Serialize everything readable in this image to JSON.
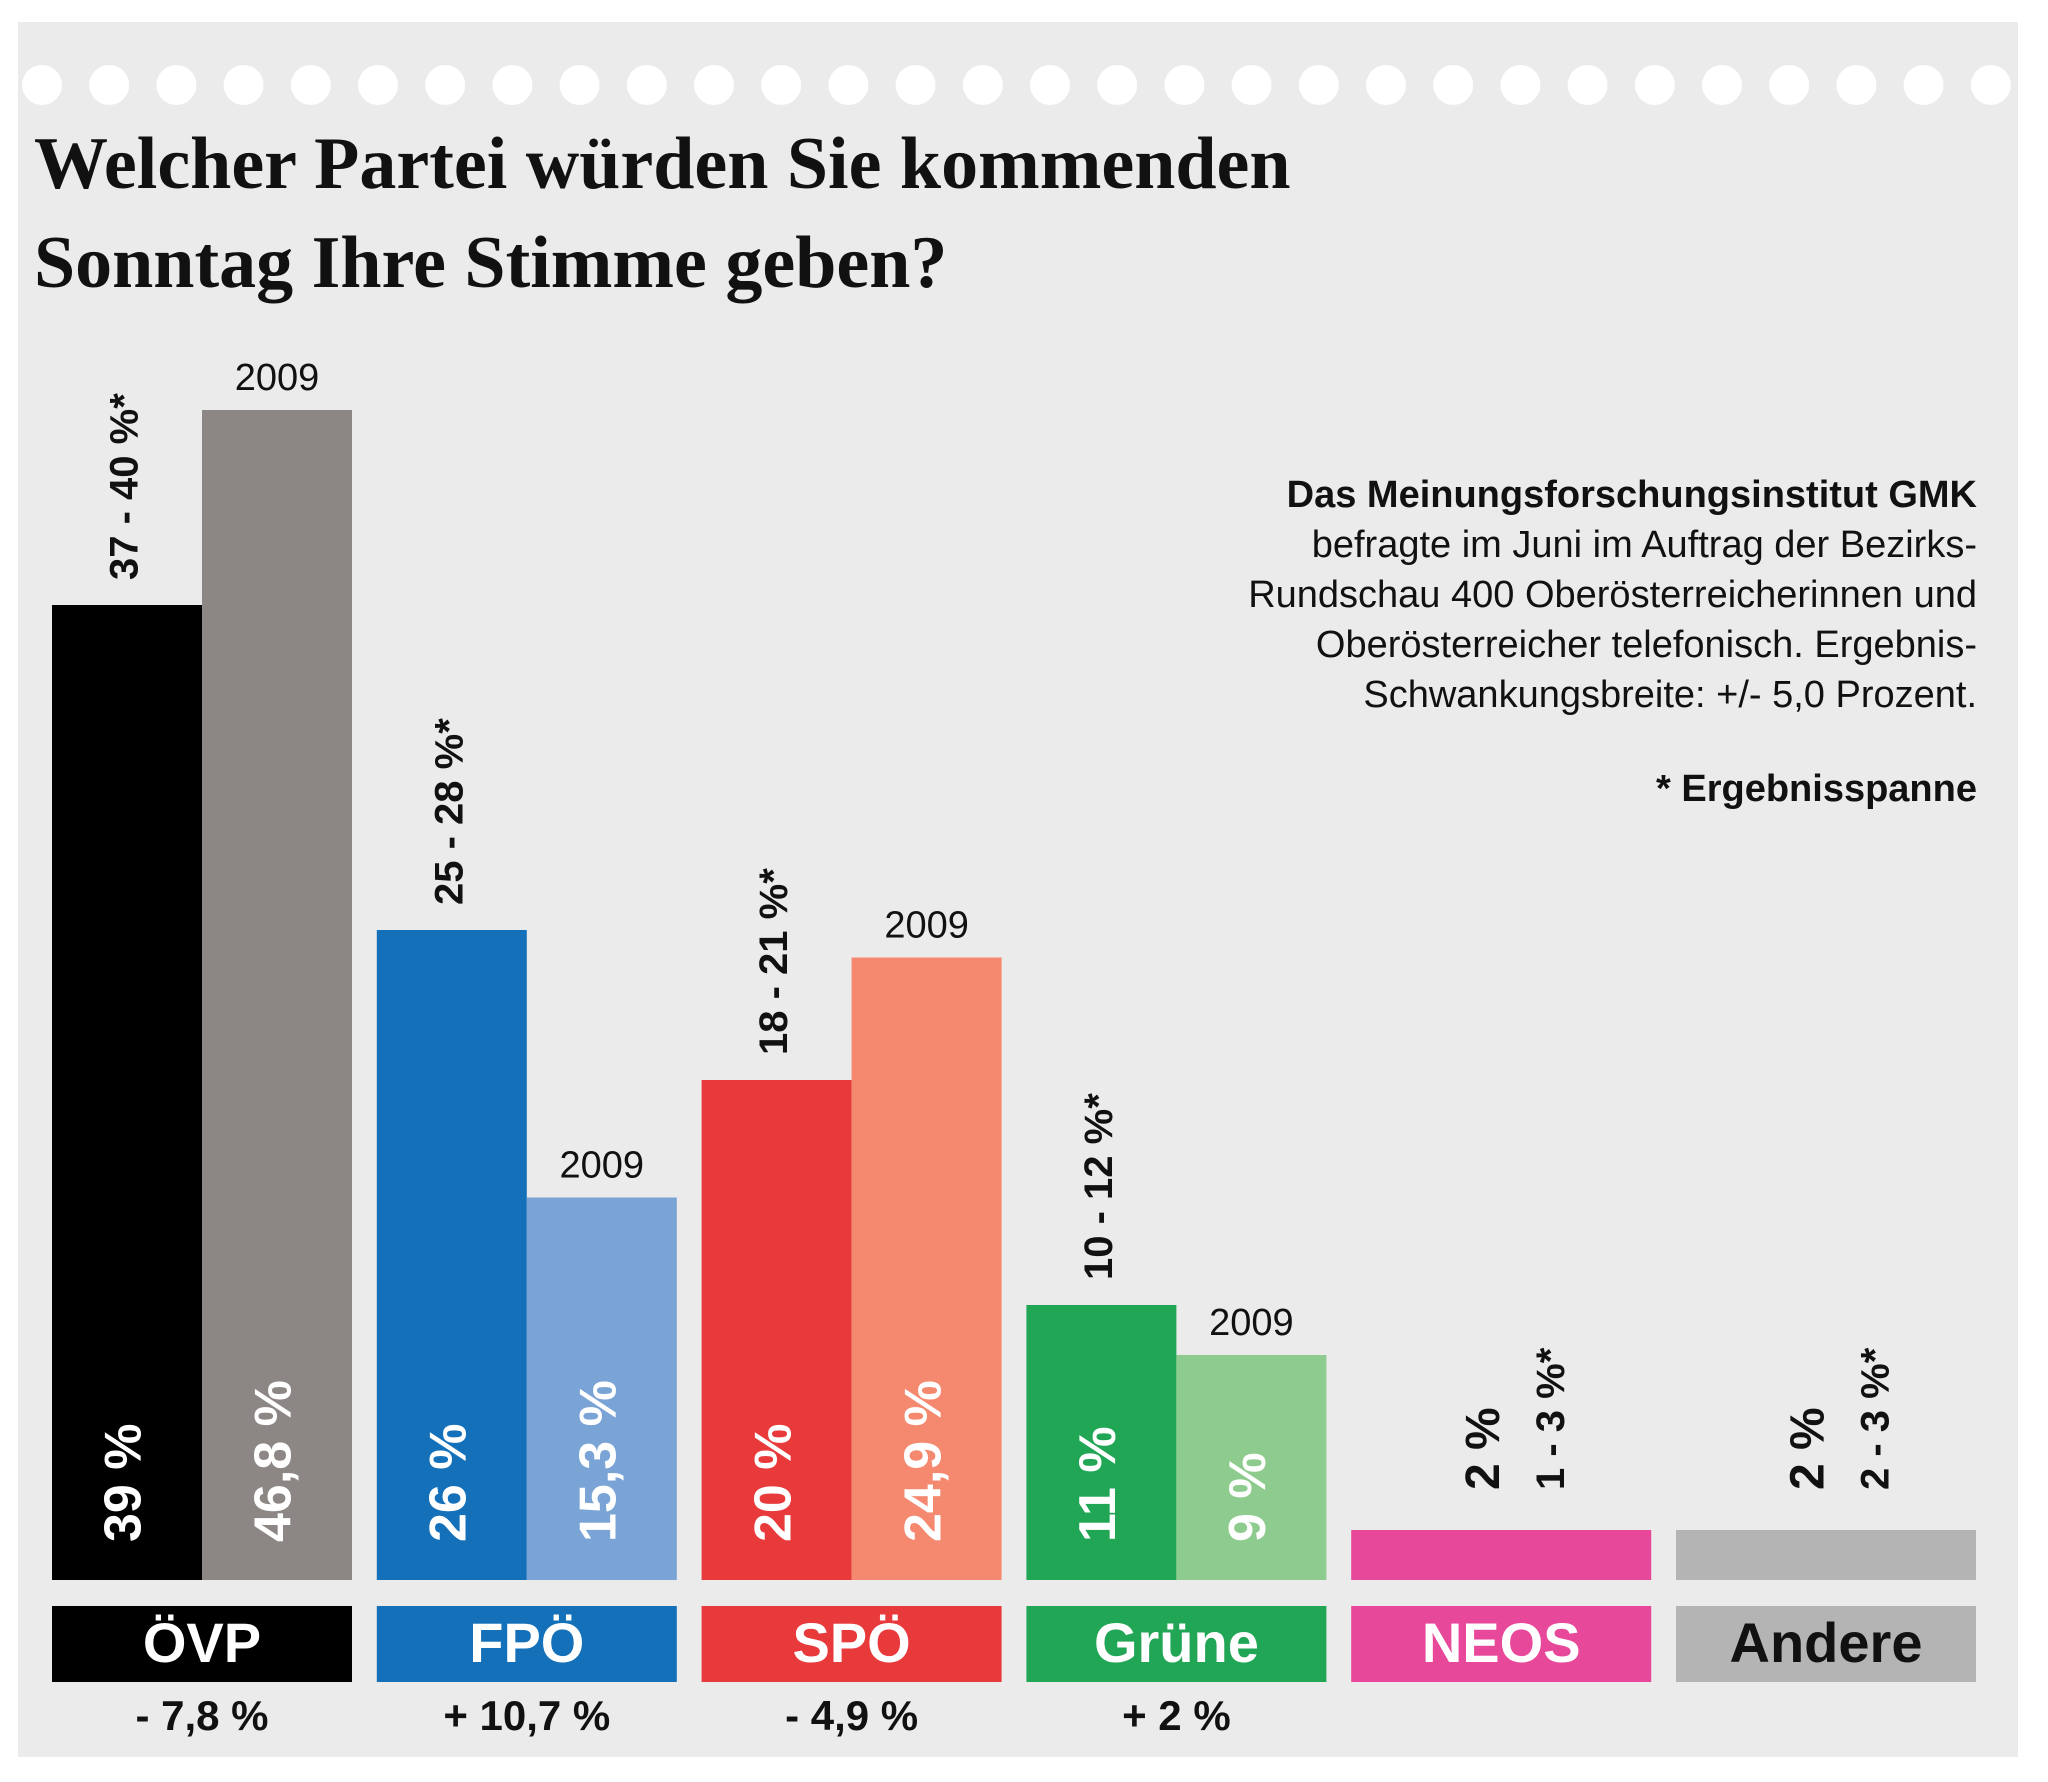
{
  "chart_data": {
    "type": "bar",
    "title": "Welcher Partei würden Sie kommenden Sonntag Ihre Stimme geben?",
    "categories": [
      "ÖVP",
      "FPÖ",
      "SPÖ",
      "Grüne",
      "NEOS",
      "Andere"
    ],
    "label_colors": [
      "#000000",
      "#1470b8",
      "#e8393b",
      "#21a656",
      "#e8489a",
      "#b5b4b4"
    ],
    "label_text_colors": [
      "#ffffff",
      "#ffffff",
      "#ffffff",
      "#ffffff",
      "#ffffff",
      "#111111"
    ],
    "series": [
      {
        "colors": [
          "#000000",
          "#1470b8",
          "#e8393b",
          "#21a656",
          "#e8489a",
          "#b5b4b4"
        ],
        "values": [
          39,
          26,
          20,
          11,
          2,
          2
        ],
        "value_labels": [
          "39 %",
          "26 %",
          "20 %",
          "11 %",
          "2 %",
          "2 %"
        ]
      },
      {
        "name": "2009",
        "colors": [
          "#8c8785",
          "#7aa3d6",
          "#f4896f",
          "#8ecb8e",
          null,
          null
        ],
        "values": [
          46.8,
          15.3,
          24.9,
          9,
          null,
          null
        ],
        "value_labels": [
          "46,8 %",
          "15,3 %",
          "24,9 %",
          "9 %",
          null,
          null
        ]
      }
    ],
    "ranges": [
      "37 - 40 %*",
      "25 - 28 %*",
      "18 - 21 %*",
      "10 - 12 %*",
      "1 - 3 %*",
      "2 - 3 %*"
    ],
    "changes": [
      "- 7,8 %",
      "+ 10,7 %",
      "- 4,9 %",
      "+ 2 %",
      null,
      null
    ],
    "note": {
      "heading": "Das Meinungsforschungsinstitut GMK",
      "text": "befragte im Juni im Auftrag der Bezirks-Rundschau 400 Oberösterreicherinnen und Oberösterreicher telefonisch. Ergebnis-Schwankungsbreite: +/- 5,0 Prozent."
    },
    "footnote": "* Ergebnisspanne"
  }
}
